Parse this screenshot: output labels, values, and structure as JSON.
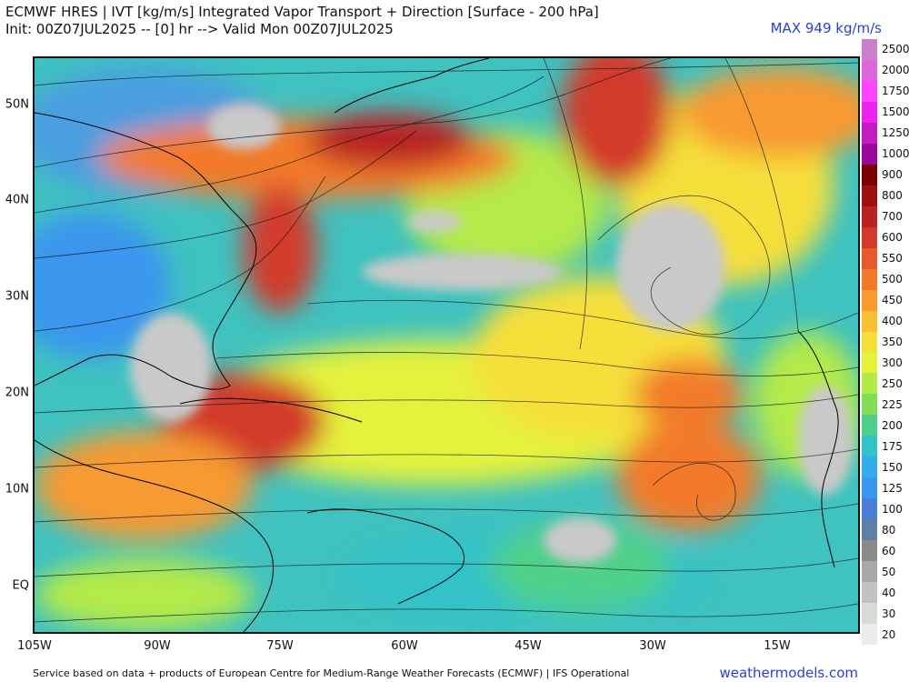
{
  "header": {
    "line1": "ECMWF HRES | IVT [kg/m/s] Integrated Vapor Transport + Direction [Surface - 200 hPa]",
    "line2": "Init: 00Z07JUL2025 -- [0] hr --> Valid Mon 00Z07JUL2025",
    "max_label": "MAX 949 kg/m/s"
  },
  "axes": {
    "lat_labels": [
      "50N",
      "40N",
      "30N",
      "20N",
      "10N",
      "EQ"
    ],
    "lon_labels": [
      "105W",
      "90W",
      "75W",
      "60W",
      "45W",
      "30W",
      "15W"
    ]
  },
  "colorbar": {
    "levels": [
      {
        "label": "2500",
        "color": "#c97fc9"
      },
      {
        "label": "2000",
        "color": "#dd66dd"
      },
      {
        "label": "1750",
        "color": "#ff44ff"
      },
      {
        "label": "1500",
        "color": "#ee22ee"
      },
      {
        "label": "1250",
        "color": "#c21cc2"
      },
      {
        "label": "1000",
        "color": "#9a0a9a"
      },
      {
        "label": "900",
        "color": "#7a0000"
      },
      {
        "label": "800",
        "color": "#9c1010"
      },
      {
        "label": "700",
        "color": "#b82222"
      },
      {
        "label": "600",
        "color": "#d23a2a"
      },
      {
        "label": "550",
        "color": "#e85a2a"
      },
      {
        "label": "500",
        "color": "#f27a2a"
      },
      {
        "label": "450",
        "color": "#f79a30"
      },
      {
        "label": "400",
        "color": "#fbbf33"
      },
      {
        "label": "350",
        "color": "#f5df3a"
      },
      {
        "label": "300",
        "color": "#e4f23c"
      },
      {
        "label": "250",
        "color": "#b4ea48"
      },
      {
        "label": "225",
        "color": "#82dd5a"
      },
      {
        "label": "200",
        "color": "#4fd08a"
      },
      {
        "label": "175",
        "color": "#33c2c8"
      },
      {
        "label": "150",
        "color": "#35aee8"
      },
      {
        "label": "125",
        "color": "#3a96ee"
      },
      {
        "label": "100",
        "color": "#4a7fd8"
      },
      {
        "label": "80",
        "color": "#5e7fa8"
      },
      {
        "label": "60",
        "color": "#8a8a8a"
      },
      {
        "label": "50",
        "color": "#a8a8a8"
      },
      {
        "label": "40",
        "color": "#c2c2c2"
      },
      {
        "label": "30",
        "color": "#d9d9d9"
      },
      {
        "label": "20",
        "color": "#ececec"
      }
    ]
  },
  "footer": {
    "credit": "Service based on data + products of European Centre for Medium-Range Weather Forecasts (ECMWF) | IFS Operational",
    "brand": "weathermodels.com"
  }
}
